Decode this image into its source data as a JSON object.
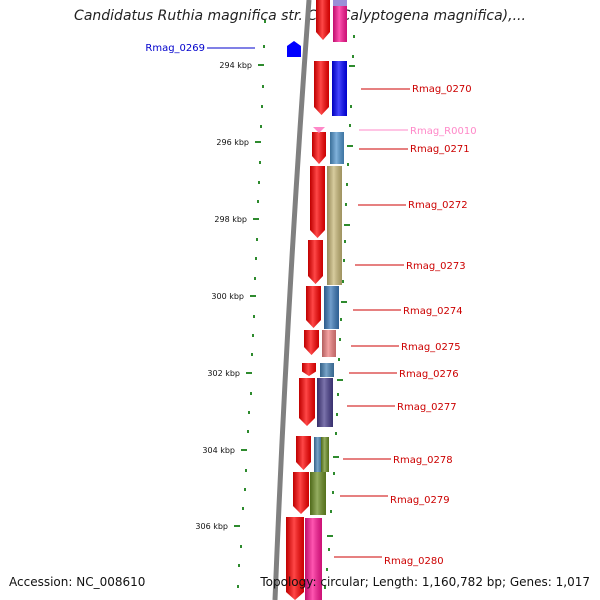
{
  "title": "Candidatus Ruthia magnifica str. Cm (Calyptogena magnifica),...",
  "accession_text": "Accession: NC_008610",
  "summary_text": "Topology: circular; Length: 1,160,782 bp; Genes: 1,017",
  "colors": {
    "backbone": "#808080",
    "tick": "#2e8b2e",
    "gene_label": "#cc0000",
    "rna_label": "#ff88c8",
    "left_label": "#0000cc",
    "forward_strand": "#ff0000"
  },
  "scale_labels": [
    {
      "kbp": 294,
      "label": "294 kbp"
    },
    {
      "kbp": 296,
      "label": "296 kbp"
    },
    {
      "kbp": 298,
      "label": "298 kbp"
    },
    {
      "kbp": 300,
      "label": "300 kbp"
    },
    {
      "kbp": 302,
      "label": "302 kbp"
    },
    {
      "kbp": 304,
      "label": "304 kbp"
    },
    {
      "kbp": 306,
      "label": "306 kbp"
    }
  ],
  "genes": [
    {
      "label": "Rmag_0269",
      "side": "left",
      "color": "#0000ff",
      "kind": "gene"
    },
    {
      "label": "Rmag_0270",
      "side": "right",
      "color": "#0000ff",
      "kind": "gene"
    },
    {
      "label": "Rmag_R0010",
      "side": "right",
      "color": "#ff88c8",
      "kind": "rna"
    },
    {
      "label": "Rmag_0271",
      "side": "right",
      "color": "#4f94cd",
      "kind": "gene"
    },
    {
      "label": "Rmag_0272",
      "side": "right",
      "color": "#c8b878",
      "kind": "gene"
    },
    {
      "label": "Rmag_0273",
      "side": "right",
      "color": "#c8b878",
      "kind": "gene"
    },
    {
      "label": "Rmag_0274",
      "side": "right",
      "color": "#3a78b8",
      "kind": "gene"
    },
    {
      "label": "Rmag_0275",
      "side": "right",
      "color": "#f08080",
      "kind": "gene"
    },
    {
      "label": "Rmag_0276",
      "side": "right",
      "color": "#4682b4",
      "kind": "gene"
    },
    {
      "label": "Rmag_0277",
      "side": "right",
      "color": "#483d8b",
      "kind": "gene"
    },
    {
      "label": "Rmag_0278",
      "side": "right",
      "color": "#6b8e23",
      "kind": "gene"
    },
    {
      "label": "Rmag_0279",
      "side": "right",
      "color": "#6b8e23",
      "kind": "gene"
    },
    {
      "label": "Rmag_0280",
      "side": "right",
      "color": "#ff1493",
      "kind": "gene"
    }
  ]
}
